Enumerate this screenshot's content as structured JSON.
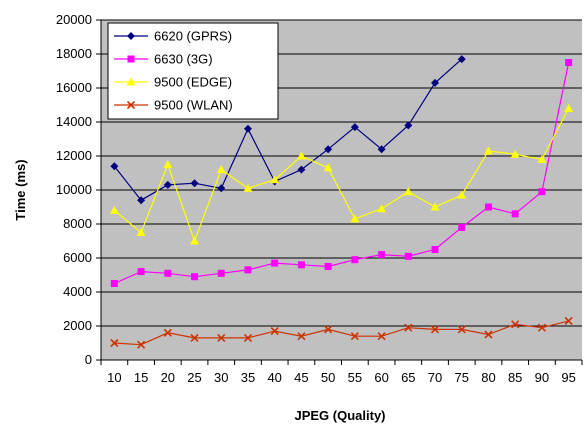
{
  "chart_data": {
    "type": "line",
    "title": "",
    "xlabel": "JPEG (Quality)",
    "ylabel": "Time (ms)",
    "x": [
      10,
      15,
      20,
      25,
      30,
      35,
      40,
      45,
      50,
      55,
      60,
      65,
      70,
      75,
      80,
      85,
      90,
      95
    ],
    "ylim": [
      0,
      20000
    ],
    "yticks": [
      0,
      2000,
      4000,
      6000,
      8000,
      10000,
      12000,
      14000,
      16000,
      18000,
      20000
    ],
    "grid": "horizontal",
    "plot_background": "#c0c0c0",
    "legend_position": "top-left",
    "series": [
      {
        "name": "6620 (GPRS)",
        "color": "#000080",
        "marker": "diamond",
        "values": [
          11400,
          9400,
          10300,
          10400,
          10100,
          13600,
          10500,
          11200,
          12400,
          13700,
          12400,
          13800,
          16300,
          17700,
          null,
          null,
          null,
          null
        ]
      },
      {
        "name": "6630 (3G)",
        "color": "#ff00ff",
        "marker": "square",
        "values": [
          4500,
          5200,
          5100,
          4900,
          5100,
          5300,
          5700,
          5600,
          5500,
          5900,
          6200,
          6100,
          6500,
          7800,
          9000,
          8600,
          9900,
          17500
        ]
      },
      {
        "name": "9500 (EDGE)",
        "color": "#ffff00",
        "marker": "triangle",
        "values": [
          8800,
          7500,
          11500,
          7000,
          11200,
          10100,
          10600,
          12000,
          11300,
          8300,
          8900,
          9900,
          9000,
          9700,
          12300,
          12100,
          11800,
          14800
        ]
      },
      {
        "name": "9500 (WLAN)",
        "color": "#cc3300",
        "marker": "x",
        "values": [
          1000,
          900,
          1600,
          1300,
          1300,
          1300,
          1700,
          1400,
          1800,
          1400,
          1400,
          1900,
          1800,
          1800,
          1500,
          2100,
          1900,
          2300
        ]
      }
    ]
  }
}
